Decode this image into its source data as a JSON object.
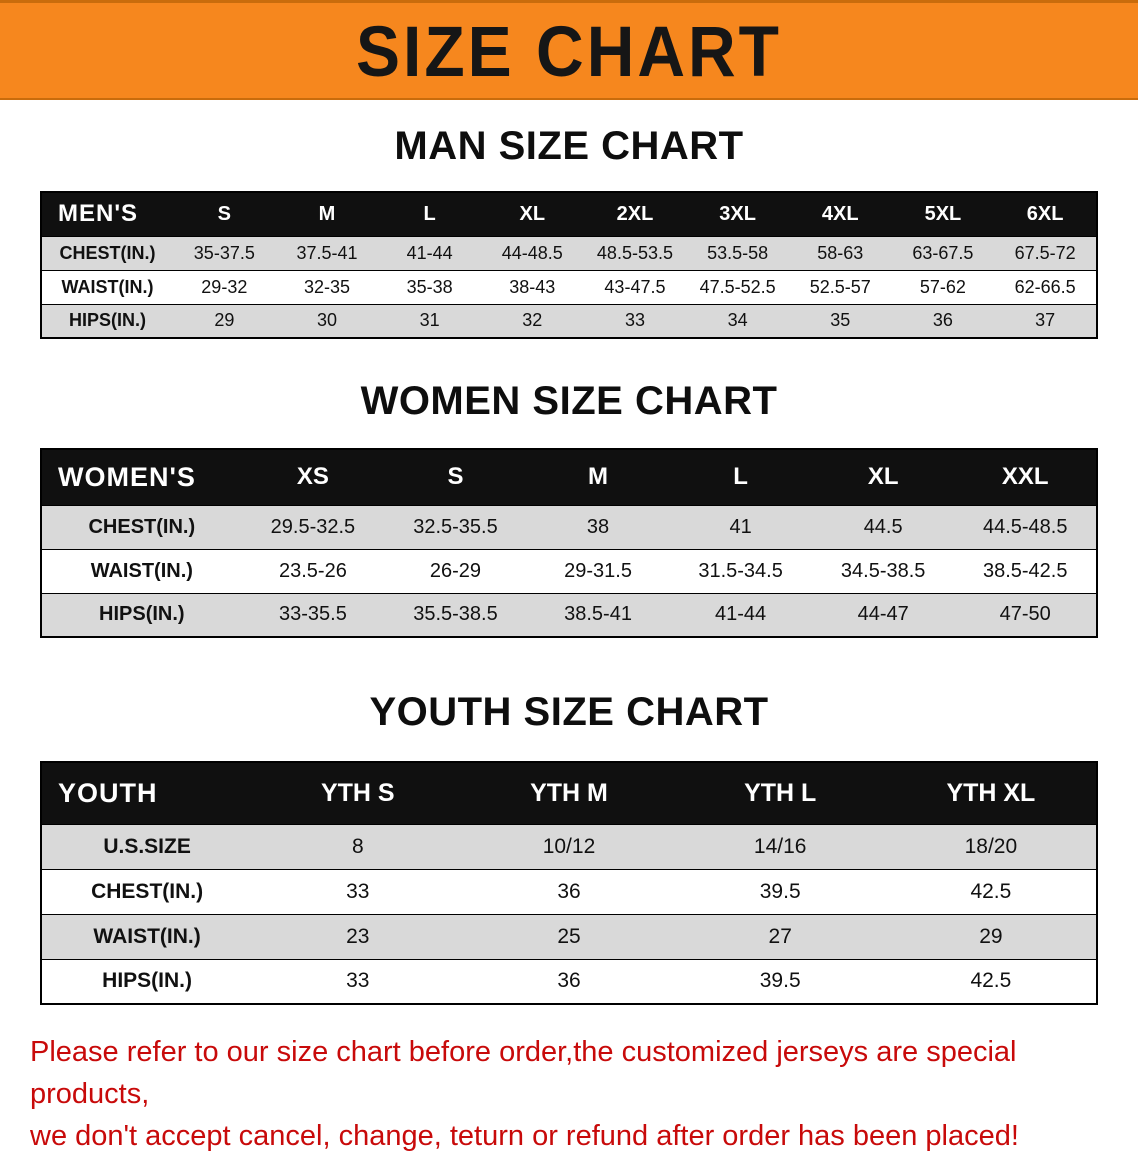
{
  "banner": {
    "title": "SIZE CHART"
  },
  "colors": {
    "banner_orange": "#f6871e",
    "banner_edge": "#c96c0c",
    "table_header_black": "#101010",
    "row_gray": "#d9d9d9",
    "notice_red": "#c80a0a"
  },
  "sections": [
    {
      "id": "man",
      "heading": "MAN SIZE CHART",
      "table": {
        "corner_label": "MEN'S",
        "columns": [
          "S",
          "M",
          "L",
          "XL",
          "2XL",
          "3XL",
          "4XL",
          "5XL",
          "6XL"
        ],
        "rows": [
          {
            "label": "CHEST(IN.)",
            "values": [
              "35-37.5",
              "37.5-41",
              "41-44",
              "44-48.5",
              "48.5-53.5",
              "53.5-58",
              "58-63",
              "63-67.5",
              "67.5-72"
            ]
          },
          {
            "label": "WAIST(IN.)",
            "values": [
              "29-32",
              "32-35",
              "35-38",
              "38-43",
              "43-47.5",
              "47.5-52.5",
              "52.5-57",
              "57-62",
              "62-66.5"
            ]
          },
          {
            "label": "HIPS(IN.)",
            "values": [
              "29",
              "30",
              "31",
              "32",
              "33",
              "34",
              "35",
              "36",
              "37"
            ]
          }
        ]
      }
    },
    {
      "id": "women",
      "heading": "WOMEN SIZE CHART",
      "table": {
        "corner_label": "WOMEN'S",
        "columns": [
          "XS",
          "S",
          "M",
          "L",
          "XL",
          "XXL"
        ],
        "rows": [
          {
            "label": "CHEST(IN.)",
            "values": [
              "29.5-32.5",
              "32.5-35.5",
              "38",
              "41",
              "44.5",
              "44.5-48.5"
            ]
          },
          {
            "label": "WAIST(IN.)",
            "values": [
              "23.5-26",
              "26-29",
              "29-31.5",
              "31.5-34.5",
              "34.5-38.5",
              "38.5-42.5"
            ]
          },
          {
            "label": "HIPS(IN.)",
            "values": [
              "33-35.5",
              "35.5-38.5",
              "38.5-41",
              "41-44",
              "44-47",
              "47-50"
            ]
          }
        ]
      }
    },
    {
      "id": "youth",
      "heading": "YOUTH SIZE CHART",
      "table": {
        "corner_label": "YOUTH",
        "columns": [
          "YTH S",
          "YTH M",
          "YTH L",
          "YTH XL"
        ],
        "rows": [
          {
            "label": "U.S.SIZE",
            "values": [
              "8",
              "10/12",
              "14/16",
              "18/20"
            ]
          },
          {
            "label": "CHEST(IN.)",
            "values": [
              "33",
              "36",
              "39.5",
              "42.5"
            ]
          },
          {
            "label": "WAIST(IN.)",
            "values": [
              "23",
              "25",
              "27",
              "29"
            ]
          },
          {
            "label": "HIPS(IN.)",
            "values": [
              "33",
              "36",
              "39.5",
              "42.5"
            ]
          }
        ]
      }
    }
  ],
  "notice": {
    "line1": "Please refer to our size chart before order,the customized jerseys are special products,",
    "line2": "we don't accept cancel, change, teturn or refund after order has been placed!"
  }
}
